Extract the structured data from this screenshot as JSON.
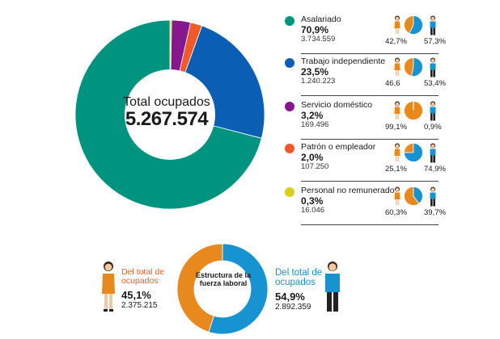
{
  "chart_data": [
    {
      "type": "pie",
      "variant": "donut",
      "center_title": "Total ocupados",
      "center_value": "5.267.574",
      "categories": [
        "Asalariado",
        "Trabajo independiente",
        "Servicio doméstico",
        "Patrón o empleador",
        "Personal no remunerado"
      ],
      "values": [
        70.9,
        23.5,
        3.2,
        2.0,
        0.3
      ],
      "colors": [
        "#009480",
        "#0a5eb4",
        "#86178c",
        "#f05a28",
        "#d8cf1e"
      ],
      "legend": [
        {
          "name": "Asalariado",
          "pct": "70,9%",
          "count": "3.734.559",
          "female_pct": "42,7%",
          "male_pct": "57,3%",
          "female_share": 42.7
        },
        {
          "name": "Trabajo independiente",
          "pct": "23,5%",
          "count": "1.240.223",
          "female_pct": "46,6",
          "male_pct": "53,4%",
          "female_share": 46.6
        },
        {
          "name": "Servicio doméstico",
          "pct": "3,2%",
          "count": "169.496",
          "female_pct": "99,1%",
          "male_pct": "0,9%",
          "female_share": 99.1
        },
        {
          "name": "Patrón o empleador",
          "pct": "2,0%",
          "count": "107.250",
          "female_pct": "25,1%",
          "male_pct": "74,9%",
          "female_share": 25.1
        },
        {
          "name": "Personal no remunerado",
          "pct": "0,3%",
          "count": "16.046",
          "female_pct": "60,3%",
          "male_pct": "39,7%",
          "female_share": 60.3
        }
      ],
      "legend_placement": "right"
    },
    {
      "type": "pie",
      "variant": "donut",
      "center_title": "Estructura de la fuerza laboral",
      "categories": [
        "Mujeres",
        "Hombres"
      ],
      "values": [
        45.1,
        54.9
      ],
      "colors": [
        "#e8891e",
        "#1793d2"
      ],
      "female": {
        "label": "Del total de ocupados",
        "pct": "45,1%",
        "count": "2.375.215"
      },
      "male": {
        "label": "Del total de ocupados",
        "pct": "54,9%",
        "count": "2.892.359"
      }
    }
  ],
  "mini_pie_colors": {
    "female": "#e8891e",
    "male": "#1793d2"
  }
}
